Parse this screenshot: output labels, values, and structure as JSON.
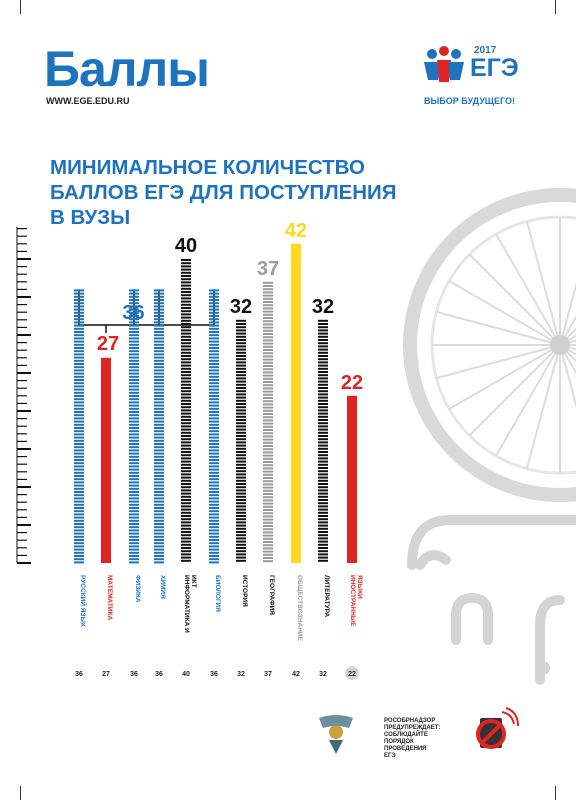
{
  "header": {
    "title": "Баллы",
    "url": "WWW.EGE.EDU.RU"
  },
  "logo": {
    "year": "2017",
    "text": "ЕГЭ",
    "tagline": "ВЫБОР БУДУЩЕГО!"
  },
  "heading": {
    "lines": [
      "МИНИМАЛЬНОЕ КОЛИЧЕСТВО",
      "БАЛЛОВ ЕГЭ ДЛЯ ПОСТУПЛЕНИЯ",
      "В ВУЗЫ"
    ]
  },
  "chart_data": {
    "type": "bar",
    "categories": [
      "РУССКИЙ ЯЗЫК",
      "МАТЕМАТИКА",
      "ФИЗИКА",
      "ХИМИЯ",
      "ИНФОРМАТИКА И ИКТ",
      "БИОЛОГИЯ",
      "ИСТОРИЯ",
      "ГЕОГРАФИЯ",
      "ОБЩЕСТВОЗНАНИЕ",
      "ЛИТЕРАТУРА",
      "ИНОСТРАННЫЕ ЯЗЫКИ"
    ],
    "values": [
      36,
      27,
      36,
      36,
      40,
      36,
      32,
      37,
      42,
      32,
      22
    ],
    "bracket_label": "36",
    "ylim": [
      0,
      50
    ],
    "colors": [
      "#1e73be",
      "#e02424",
      "#1e73be",
      "#1e73be",
      "#111111",
      "#1e73be",
      "#111111",
      "#9a9a9a",
      "#ffd81f",
      "#111111",
      "#e02424"
    ],
    "label_colors": [
      "#1e73be",
      "#e02424",
      "#1e73be",
      "#1e73be",
      "#111111",
      "#1e73be",
      "#111111",
      "#9a9a9a",
      "#ffd81f",
      "#111111",
      "#e02424"
    ]
  },
  "footer": {
    "org_lines": [
      "РОСОБРНАДЗОР",
      "ПРЕДУПРЕЖДАЕТ:",
      "СОБЛЮДАЙТЕ",
      "ПОРЯДОК",
      "ПРОВЕДЕНИЯ",
      "ЕГЭ"
    ],
    "emblem_icon": "rosobrnadzor-emblem-icon",
    "no-phone_icon": "no-phone-icon"
  },
  "colors": {
    "brand_blue": "#1e73be",
    "red": "#e02424",
    "yellow": "#ffd81f",
    "grey": "#9a9a9a",
    "decor": "#d6d6d6"
  }
}
